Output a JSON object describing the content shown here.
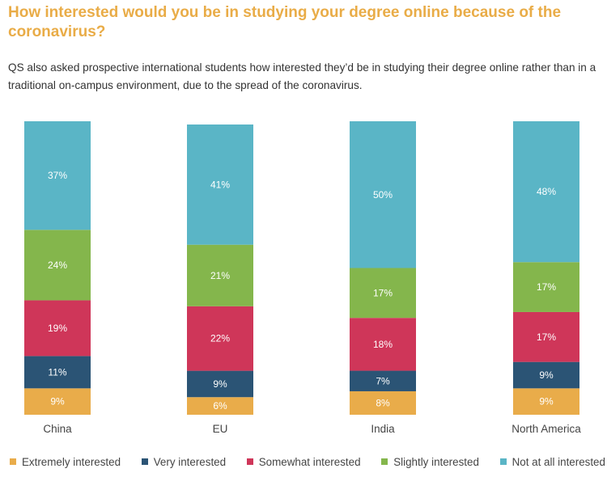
{
  "title": "How interested would you be in studying your degree online because of the coronavirus?",
  "subtitle": "QS also asked prospective international students how interested they’d be in studying their degree online rather than in a traditional on-campus environment, due to the spread of the coronavirus.",
  "chart_data": {
    "type": "bar",
    "stacked": true,
    "categories": [
      "China",
      "EU",
      "India",
      "North America"
    ],
    "series": [
      {
        "name": "Extremely interested",
        "color": "#e9ac4a",
        "values": [
          9,
          6,
          8,
          9
        ]
      },
      {
        "name": "Very interested",
        "color": "#2b5475",
        "values": [
          11,
          9,
          7,
          9
        ]
      },
      {
        "name": "Somewhat interested",
        "color": "#cf3659",
        "values": [
          19,
          22,
          18,
          17
        ]
      },
      {
        "name": "Slightly interested",
        "color": "#84b64c",
        "values": [
          24,
          21,
          17,
          17
        ]
      },
      {
        "name": "Not at all interested",
        "color": "#5ab5c6",
        "values": [
          37,
          41,
          50,
          48
        ]
      }
    ],
    "data_labels": [
      [
        "9%",
        "6%",
        "8%",
        "9%"
      ],
      [
        "11%",
        "9%",
        "7%",
        "9%"
      ],
      [
        "19%",
        "22%",
        "18%",
        "17%"
      ],
      [
        "24%",
        "21%",
        "17%",
        "17%"
      ],
      [
        "37%",
        "41%",
        "50%",
        "48%"
      ]
    ],
    "legend_position": "bottom"
  }
}
